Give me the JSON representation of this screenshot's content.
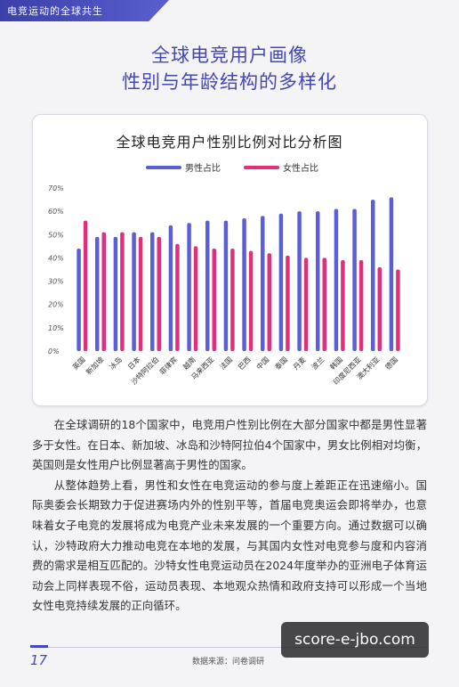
{
  "header": {
    "tab_text": "电竞运动的全球共生"
  },
  "page": {
    "title_line1": "全球电竞用户画像",
    "title_line2": "性别与年龄结构的多样化"
  },
  "colors": {
    "male": "#5b5fd6",
    "female": "#e0307c",
    "accent": "#4347b7"
  },
  "chart_data": {
    "type": "bar",
    "title": "全球电竞用户性别比例对比分析图",
    "xlabel": "",
    "ylabel": "",
    "ylim": [
      0,
      70
    ],
    "yticks": [
      "0%",
      "10%",
      "20%",
      "30%",
      "40%",
      "50%",
      "60%",
      "70%"
    ],
    "grid": false,
    "legend": "top-center",
    "categories": [
      "英国",
      "新加坡",
      "冰岛",
      "日本",
      "沙特阿拉伯",
      "菲律宾",
      "越南",
      "马来西亚",
      "法国",
      "巴西",
      "中国",
      "泰国",
      "丹麦",
      "波兰",
      "韩国",
      "印度尼西亚",
      "澳大利亚",
      "德国"
    ],
    "series": [
      {
        "name": "男性占比",
        "values": [
          44,
          49,
          49,
          51,
          51,
          54,
          55,
          56,
          56,
          57,
          58,
          59,
          60,
          60,
          61,
          61,
          65,
          66
        ]
      },
      {
        "name": "女性占比",
        "values": [
          56,
          51,
          51,
          49,
          49,
          46,
          45,
          44,
          44,
          43,
          42,
          41,
          40,
          40,
          39,
          39,
          36,
          35
        ]
      }
    ]
  },
  "body": {
    "para1": "在全球调研的18个国家中，电竞用户性别比例在大部分国家中都是男性显著多于女性。在日本、新加坡、冰岛和沙特阿拉伯4个国家中，男女比例相对均衡，英国则是女性用户比例显著高于男性的国家。",
    "para2": "从整体趋势上看，男性和女性在电竞运动的参与度上差距正在迅速缩小。国际奥委会长期致力于促进赛场内外的性别平等，首届电竞奥运会即将举办，也意味着女子电竞的发展将成为电竞产业未来发展的一个重要方向。通过数据可以确认，沙特政府大力推动电竞在本地的发展，与其国内女性对电竞参与度和内容消费的需求是相互匹配的。沙特女性电竞运动员在2024年度举办的亚洲电子体育运动会上同样表现不俗，运动员表现、本地观众热情和政府支持可以形成一个当地女性电竞持续发展的正向循环。"
  },
  "footer": {
    "page_number": "17",
    "source": "数据来源：问卷调研"
  },
  "watermark": "score-e-jbo.com"
}
